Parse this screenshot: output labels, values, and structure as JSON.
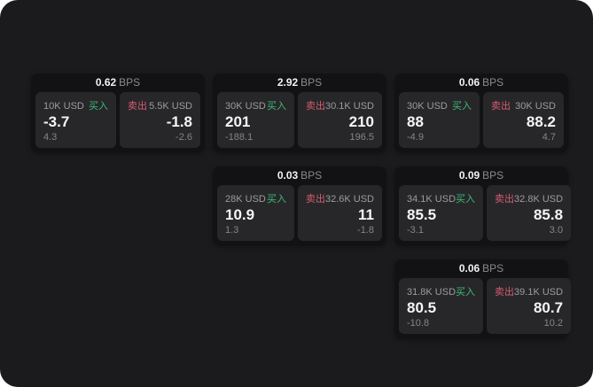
{
  "labels": {
    "buy": "买入",
    "sell": "卖出",
    "bps": "BPS"
  },
  "colors": {
    "screen_bg": "#1b1b1d",
    "card_bg": "#121214",
    "panel_bg": "#27272a",
    "buy_green": "#3dbb75",
    "sell_red": "#d75c6e",
    "text_primary": "#f5f5f5",
    "text_muted": "#9c9ca0"
  },
  "cards": [
    {
      "row": 0,
      "col": 0,
      "bps": "0.62",
      "buy": {
        "amount": "10K USD",
        "price": "-3.7",
        "delta": "4.3"
      },
      "sell": {
        "amount": "5.5K USD",
        "price": "-1.8",
        "delta": "-2.6"
      }
    },
    {
      "row": 0,
      "col": 1,
      "bps": "2.92",
      "buy": {
        "amount": "30K USD",
        "price": "201",
        "delta": "-188.1"
      },
      "sell": {
        "amount": "30.1K USD",
        "price": "210",
        "delta": "196.5"
      }
    },
    {
      "row": 0,
      "col": 2,
      "bps": "0.06",
      "buy": {
        "amount": "30K USD",
        "price": "88",
        "delta": "-4.9"
      },
      "sell": {
        "amount": "30K USD",
        "price": "88.2",
        "delta": "4.7"
      }
    },
    {
      "row": 1,
      "col": 1,
      "bps": "0.03",
      "buy": {
        "amount": "28K USD",
        "price": "10.9",
        "delta": "1.3"
      },
      "sell": {
        "amount": "32.6K USD",
        "price": "11",
        "delta": "-1.8"
      }
    },
    {
      "row": 1,
      "col": 2,
      "bps": "0.09",
      "buy": {
        "amount": "34.1K USD",
        "price": "85.5",
        "delta": "-3.1"
      },
      "sell": {
        "amount": "32.8K USD",
        "price": "85.8",
        "delta": "3.0"
      }
    },
    {
      "row": 2,
      "col": 2,
      "bps": "0.06",
      "buy": {
        "amount": "31.8K USD",
        "price": "80.5",
        "delta": "-10.8"
      },
      "sell": {
        "amount": "39.1K USD",
        "price": "80.7",
        "delta": "10.2"
      }
    }
  ]
}
